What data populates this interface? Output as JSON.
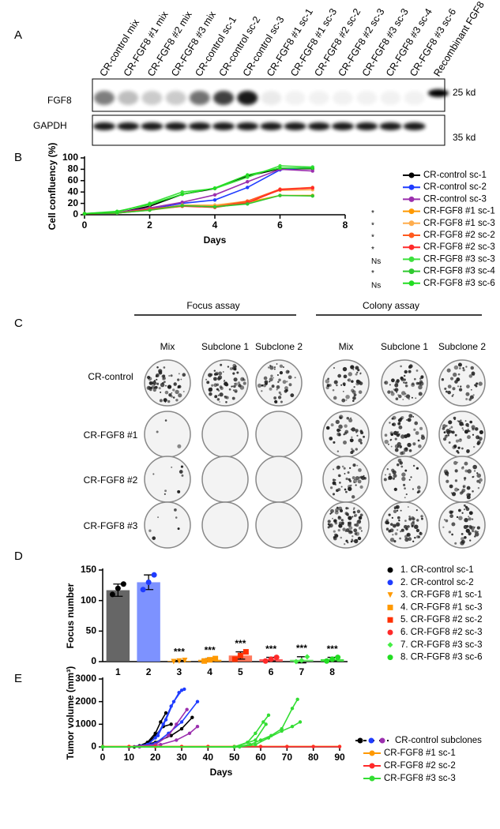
{
  "panel_labels": [
    "A",
    "B",
    "C",
    "D",
    "E"
  ],
  "blot": {
    "lanes": [
      "CR-control mix",
      "CR-FGF8 #1 mix",
      "CR-FGF8 #2 mix",
      "CR-FGF8 #3 mix",
      "CR-control  sc-1",
      "CR-control  sc-2",
      "CR-control  sc-3",
      "CR-FGF8 #1 sc-1",
      "CR-FGF8 #1 sc-3",
      "CR-FGF8 #2 sc-2",
      "CR-FGF8 #2 sc-3",
      "CR-FGF8 #3 sc-3",
      "CR-FGF8 #3 sc-4",
      "CR-FGF8 #3 sc-6",
      "Recombinant FGF8"
    ],
    "rows": [
      {
        "label": "FGF8",
        "size": "25 kd"
      },
      {
        "label": "GAPDH",
        "size": "35 kd"
      }
    ]
  },
  "plates": {
    "groups": [
      {
        "title": "Focus assay",
        "columns": [
          "Mix",
          "Subclone 1",
          "Subclone 2"
        ]
      },
      {
        "title": "Colony assay",
        "columns": [
          "Mix",
          "Subclone 1",
          "Subclone 2"
        ]
      }
    ],
    "rows": [
      "CR-control",
      "CR-FGF8 #1",
      "CR-FGF8 #2",
      "CR-FGF8 #3"
    ]
  },
  "chart_data": [
    {
      "type": "line",
      "xlabel": "Days",
      "ylabel": "Cell confluency (%)",
      "x": [
        0,
        1,
        2,
        3,
        4,
        5,
        6,
        7
      ],
      "xlim": [
        0,
        8
      ],
      "xticks": [
        0,
        2,
        4,
        6,
        8
      ],
      "ylim": [
        0,
        100
      ],
      "yticks": [
        0,
        20,
        40,
        60,
        80,
        100
      ],
      "series": [
        {
          "name": "CR-control sc-1",
          "color": "#000000",
          "values": [
            2,
            3,
            15,
            36,
            46,
            68,
            81,
            81
          ]
        },
        {
          "name": "CR-control sc-2",
          "color": "#1f3cff",
          "values": [
            2,
            4,
            10,
            20,
            26,
            48,
            79,
            84
          ]
        },
        {
          "name": "CR-control sc-3",
          "color": "#9b2fae",
          "values": [
            2,
            4,
            12,
            22,
            35,
            58,
            80,
            77
          ]
        },
        {
          "name": "CR-FGF8 #1 sc-1",
          "color": "#ff9900",
          "significance": "*",
          "values": [
            2,
            3,
            8,
            15,
            16,
            22,
            34,
            34
          ]
        },
        {
          "name": "CR-FGF8 #1 sc-3",
          "color": "#ffad4d",
          "significance": "*",
          "values": [
            2,
            3,
            9,
            17,
            17,
            24,
            43,
            44
          ]
        },
        {
          "name": "CR-FGF8 #2 sc-2",
          "color": "#ff5a1f",
          "significance": "*",
          "values": [
            2,
            3,
            10,
            16,
            14,
            24,
            45,
            48
          ]
        },
        {
          "name": "CR-FGF8 #2 sc-3",
          "color": "#ff2a2a",
          "significance": "*",
          "values": [
            2,
            3,
            9,
            15,
            13,
            21,
            44,
            47
          ]
        },
        {
          "name": "CR-FGF8 #3 sc-3",
          "color": "#3de03d",
          "significance": "Ns",
          "values": [
            2,
            5,
            20,
            40,
            46,
            66,
            86,
            84
          ]
        },
        {
          "name": "CR-FGF8 #3 sc-4",
          "color": "#2fc92f",
          "significance": "*",
          "values": [
            2,
            3,
            8,
            16,
            14,
            19,
            34,
            33
          ]
        },
        {
          "name": "CR-FGF8 #3 sc-6",
          "color": "#22dd22",
          "significance": "Ns",
          "values": [
            2,
            6,
            18,
            36,
            47,
            70,
            82,
            82
          ]
        }
      ]
    },
    {
      "type": "bar",
      "ylabel": "Focus number",
      "categories": [
        "1",
        "2",
        "3",
        "4",
        "5",
        "6",
        "7",
        "8"
      ],
      "values": [
        117,
        130,
        1,
        3,
        10,
        4,
        3,
        4
      ],
      "errors": [
        10,
        12,
        1,
        2,
        6,
        3,
        5,
        3
      ],
      "points": [
        [
          110,
          120,
          127
        ],
        [
          118,
          130,
          142
        ],
        [
          0,
          1,
          2
        ],
        [
          1,
          3,
          5
        ],
        [
          4,
          10,
          16
        ],
        [
          1,
          4,
          7
        ],
        [
          0,
          2,
          8
        ],
        [
          1,
          4,
          7
        ]
      ],
      "colors": [
        "#555555",
        "#6f86ff",
        "#ff9900",
        "#ff9900",
        "#ff6a4d",
        "#ff4a4a",
        "#5ee05e",
        "#33dd33"
      ],
      "point_colors": [
        "#000000",
        "#1f3cff",
        "#ff9900",
        "#ff9900",
        "#ff3000",
        "#ff2a2a",
        "#44ee44",
        "#22dd22"
      ],
      "markers": [
        "circle",
        "circle",
        "triangle",
        "square",
        "square",
        "circle",
        "diamond",
        "circle"
      ],
      "legend": [
        "1. CR-control sc-1",
        "2. CR-control sc-2",
        "3. CR-FGF8 #1 sc-1",
        "4. CR-FGF8 #1 sc-3",
        "5. CR-FGF8 #2 sc-2",
        "6. CR-FGF8 #2 sc-3",
        "7. CR-FGF8 #3 sc-3",
        "8. CR-FGF8 #3 sc-6"
      ],
      "annotations": [
        null,
        null,
        "***",
        "***",
        "***",
        "***",
        "***",
        "***"
      ],
      "ylim": [
        0,
        150
      ],
      "yticks": [
        0,
        50,
        100,
        150
      ]
    },
    {
      "type": "line",
      "xlabel": "Days",
      "ylabel": "Tumor volume (mm³)",
      "xlim": [
        0,
        90
      ],
      "xticks": [
        0,
        10,
        20,
        30,
        40,
        50,
        60,
        70,
        80,
        90
      ],
      "ylim": [
        0,
        3000
      ],
      "yticks": [
        0,
        1000,
        2000,
        3000
      ],
      "series": [
        {
          "name": "CR-control subclones",
          "colors": [
            "#000000",
            "#1f3cff",
            "#9b2fae"
          ],
          "lines": [
            {
              "color": "#000000",
              "x": [
                0,
                10,
                14,
                17,
                20,
                22,
                24
              ],
              "values": [
                0,
                0,
                50,
                200,
                600,
                1100,
                1500
              ]
            },
            {
              "color": "#000000",
              "x": [
                0,
                10,
                14,
                17,
                20,
                23,
                26
              ],
              "values": [
                0,
                0,
                30,
                150,
                500,
                900,
                1000
              ]
            },
            {
              "color": "#000000",
              "x": [
                0,
                12,
                20,
                26,
                30,
                34
              ],
              "values": [
                0,
                0,
                200,
                500,
                800,
                1300
              ]
            },
            {
              "color": "#1f3cff",
              "x": [
                0,
                10,
                17,
                20,
                23,
                26,
                29,
                31
              ],
              "values": [
                0,
                0,
                100,
                400,
                1000,
                1800,
                2400,
                2550
              ]
            },
            {
              "color": "#1f3cff",
              "x": [
                0,
                10,
                17,
                21,
                24,
                27,
                30
              ],
              "values": [
                0,
                0,
                100,
                500,
                1200,
                2000,
                2500
              ]
            },
            {
              "color": "#1f3cff",
              "x": [
                0,
                10,
                20,
                25,
                30,
                36
              ],
              "values": [
                0,
                0,
                150,
                600,
                1100,
                2000
              ]
            },
            {
              "color": "#9b2fae",
              "x": [
                0,
                10,
                20,
                25,
                28,
                32
              ],
              "values": [
                0,
                0,
                100,
                500,
                1000,
                1650
              ]
            },
            {
              "color": "#9b2fae",
              "x": [
                0,
                14,
                22,
                28,
                33,
                36
              ],
              "values": [
                0,
                0,
                100,
                300,
                600,
                900
              ]
            }
          ]
        },
        {
          "name": "CR-FGF8 #1 sc-1",
          "color": "#ff9900",
          "lines": [
            {
              "color": "#ff9900",
              "x": [
                0,
                10,
                20,
                30,
                40,
                50,
                60,
                70,
                80,
                90
              ],
              "values": [
                20,
                20,
                20,
                20,
                20,
                20,
                20,
                20,
                20,
                20
              ]
            }
          ]
        },
        {
          "name": "CR-FGF8 #2 sc-2",
          "color": "#ff2a2a",
          "lines": [
            {
              "color": "#ff2a2a",
              "x": [
                0,
                10,
                20,
                30,
                40,
                50,
                60,
                70,
                80,
                90
              ],
              "values": [
                10,
                10,
                10,
                10,
                10,
                10,
                10,
                10,
                10,
                10
              ]
            }
          ]
        },
        {
          "name": "CR-FGF8 #3 sc-3",
          "color": "#33dd33",
          "lines": [
            {
              "color": "#33dd33",
              "x": [
                0,
                50,
                55,
                58,
                61,
                63
              ],
              "values": [
                0,
                0,
                200,
                600,
                1100,
                1400
              ]
            },
            {
              "color": "#33dd33",
              "x": [
                0,
                50,
                56,
                60,
                64,
                68,
                72,
                74
              ],
              "values": [
                0,
                0,
                100,
                300,
                500,
                800,
                1700,
                2100
              ]
            },
            {
              "color": "#33dd33",
              "x": [
                0,
                52,
                58,
                63,
                68,
                72,
                75
              ],
              "values": [
                0,
                0,
                100,
                400,
                700,
                900,
                1100
              ]
            },
            {
              "color": "#33dd33",
              "x": [
                0,
                50,
                58,
                62
              ],
              "values": [
                0,
                0,
                300,
                1000
              ]
            }
          ]
        }
      ]
    }
  ]
}
